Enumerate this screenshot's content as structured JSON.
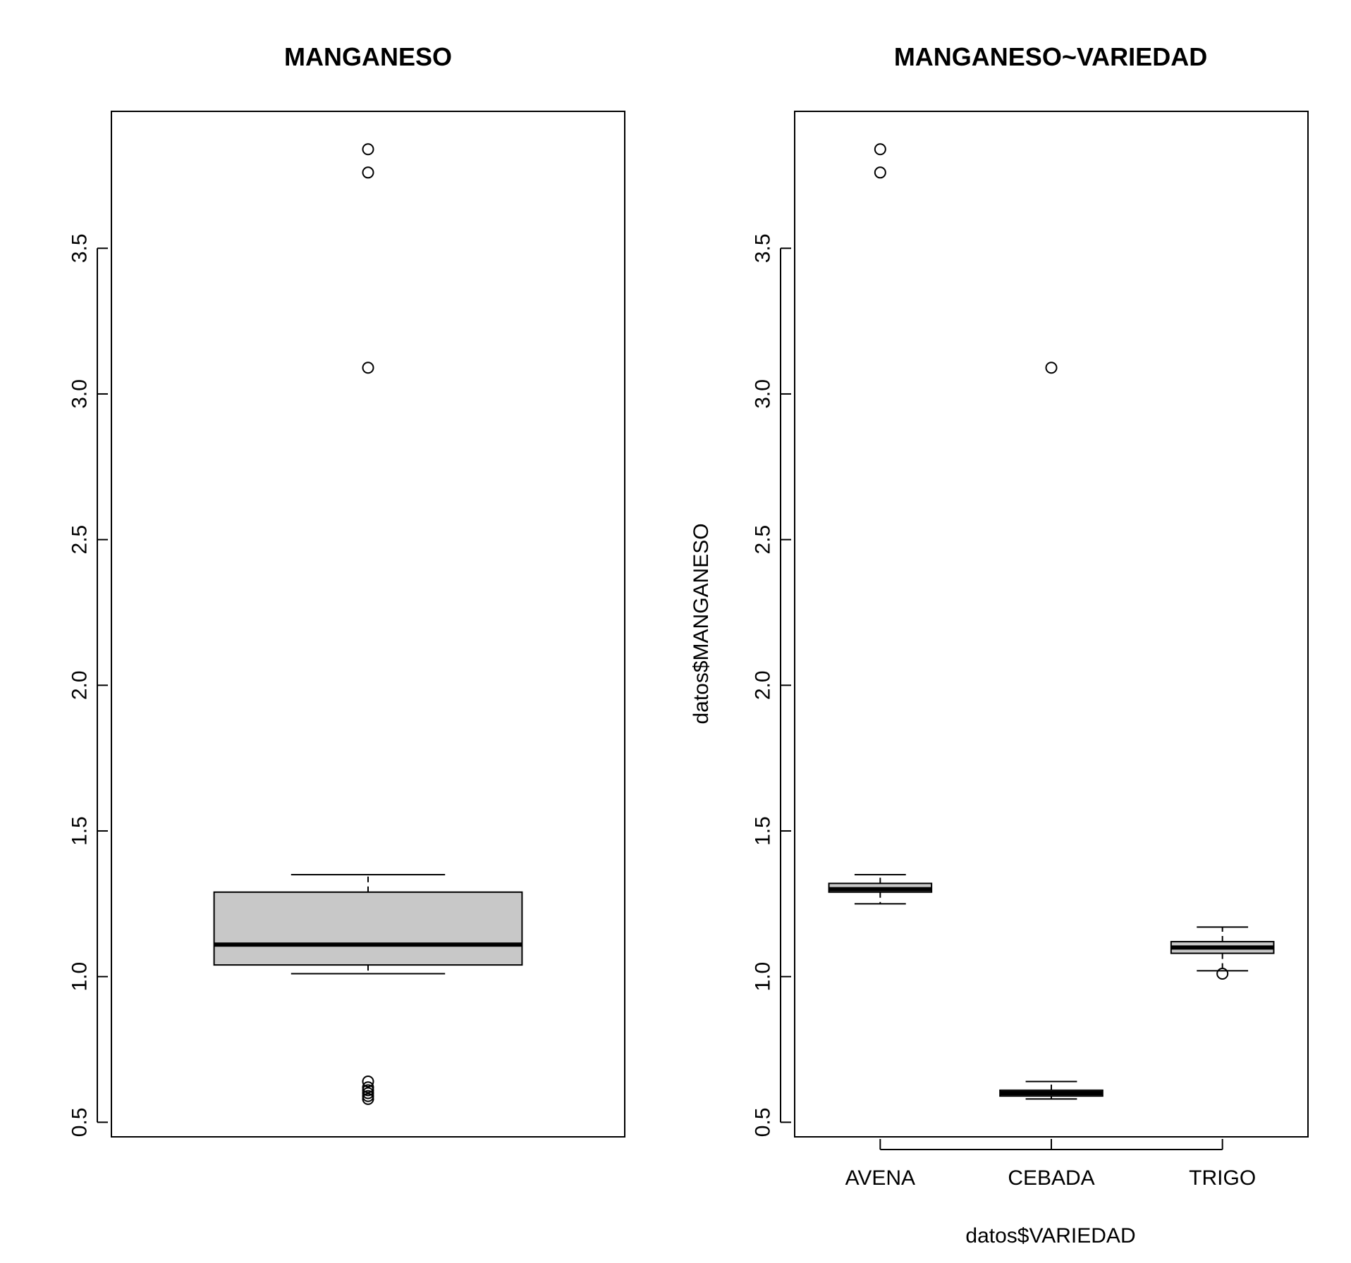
{
  "chart_data": [
    {
      "type": "boxplot",
      "title": "MANGANESO",
      "xlabel": "",
      "ylabel": "",
      "ylim": [
        0.45,
        3.97
      ],
      "yticks": [
        0.5,
        1.0,
        1.5,
        2.0,
        2.5,
        3.0,
        3.5
      ],
      "ytick_labels": [
        "0.5",
        "1.0",
        "1.5",
        "2.0",
        "2.5",
        "3.0",
        "3.5"
      ],
      "categories": [
        ""
      ],
      "boxes": [
        {
          "category": "",
          "whisker_low": 1.01,
          "q1": 1.04,
          "median": 1.11,
          "q3": 1.29,
          "whisker_high": 1.35,
          "outliers": [
            3.84,
            3.76,
            3.09,
            0.64,
            0.62,
            0.61,
            0.6,
            0.59,
            0.58
          ]
        }
      ],
      "box_fill": "#c8c8c8"
    },
    {
      "type": "boxplot",
      "title": "MANGANESO~VARIEDAD",
      "xlabel": "datos$VARIEDAD",
      "ylabel": "datos$MANGANESO",
      "ylim": [
        0.45,
        3.97
      ],
      "yticks": [
        0.5,
        1.0,
        1.5,
        2.0,
        2.5,
        3.0,
        3.5
      ],
      "ytick_labels": [
        "0.5",
        "1.0",
        "1.5",
        "2.0",
        "2.5",
        "3.0",
        "3.5"
      ],
      "categories": [
        "AVENA",
        "CEBADA",
        "TRIGO"
      ],
      "boxes": [
        {
          "category": "AVENA",
          "whisker_low": 1.25,
          "q1": 1.29,
          "median": 1.3,
          "q3": 1.32,
          "whisker_high": 1.35,
          "outliers": [
            3.84,
            3.76
          ]
        },
        {
          "category": "CEBADA",
          "whisker_low": 0.58,
          "q1": 0.59,
          "median": 0.6,
          "q3": 0.61,
          "whisker_high": 0.64,
          "outliers": [
            3.09
          ]
        },
        {
          "category": "TRIGO",
          "whisker_low": 1.02,
          "q1": 1.08,
          "median": 1.1,
          "q3": 1.12,
          "whisker_high": 1.17,
          "outliers": [
            1.01
          ]
        }
      ],
      "box_fill": "#c8c8c8"
    }
  ]
}
